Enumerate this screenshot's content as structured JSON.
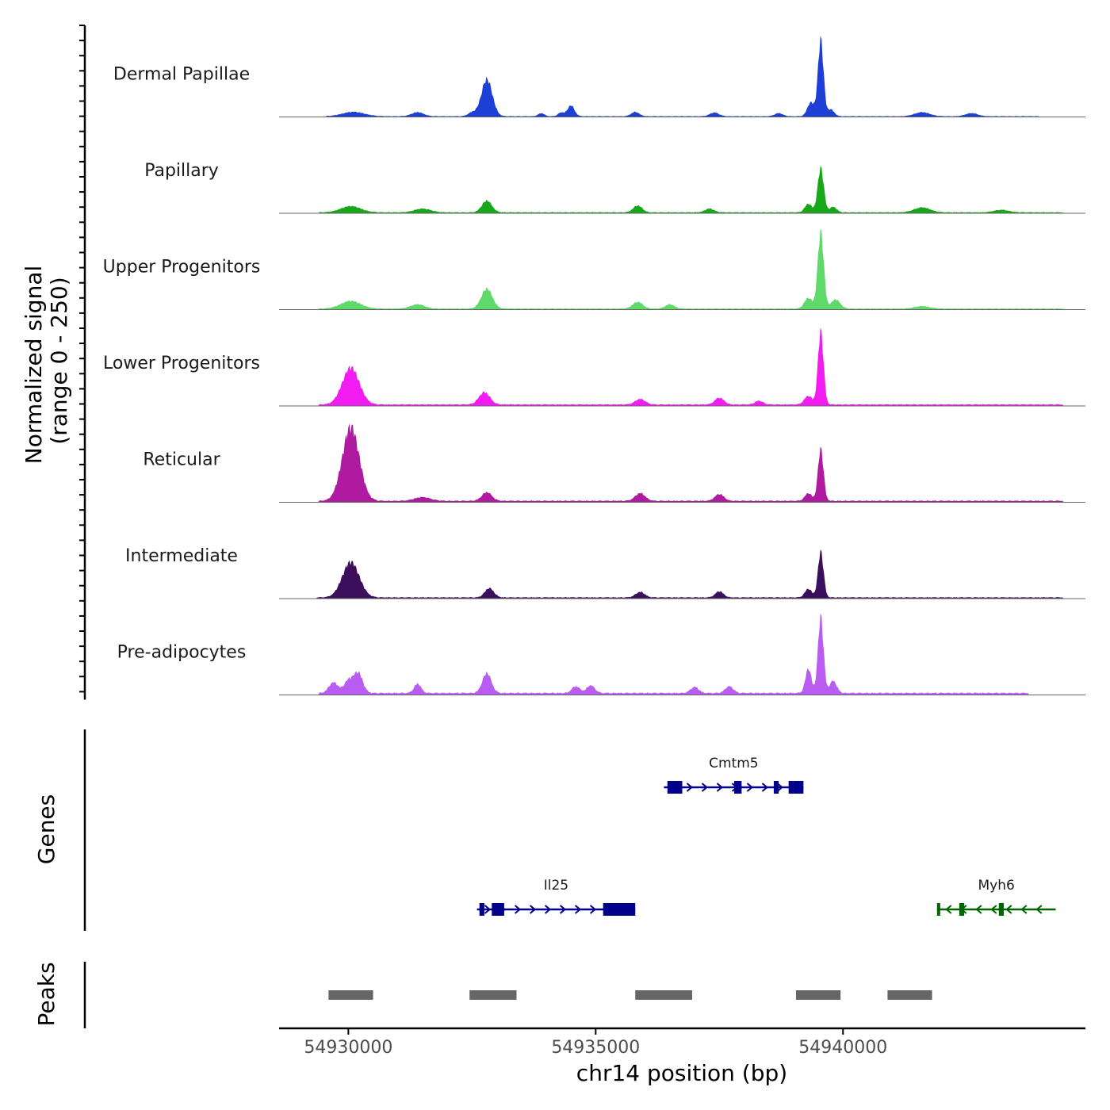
{
  "chart_data": {
    "type": "area",
    "region": {
      "chromosome": "chr14",
      "start": 54928600,
      "end": 54944900
    },
    "ylabel": "Normalized signal\n(range 0 - 250)",
    "ylabel_lines": [
      "Normalized signal",
      "(range 0 - 250)"
    ],
    "ylim": [
      0,
      250
    ],
    "xlabel": "chr14 position (bp)",
    "xticks": [
      {
        "value": 54930000,
        "label": "54930000"
      },
      {
        "value": 54935000,
        "label": "54935000"
      },
      {
        "value": 54940000,
        "label": "54940000"
      }
    ],
    "section_labels": {
      "genes": "Genes",
      "peaks": "Peaks"
    },
    "baseline_color": "#666666",
    "tracks": [
      {
        "name": "Dermal Papillae",
        "color": "#1d3fd6",
        "peaks": [
          {
            "pos": 54939550,
            "height": 250,
            "width": 55
          },
          {
            "pos": 54939350,
            "height": 45,
            "width": 70
          },
          {
            "pos": 54939750,
            "height": 22,
            "width": 70
          },
          {
            "pos": 54932800,
            "height": 120,
            "width": 110
          },
          {
            "pos": 54932500,
            "height": 12,
            "width": 80
          },
          {
            "pos": 54934500,
            "height": 35,
            "width": 70
          },
          {
            "pos": 54934300,
            "height": 12,
            "width": 60
          },
          {
            "pos": 54933900,
            "height": 10,
            "width": 60
          },
          {
            "pos": 54930100,
            "height": 14,
            "width": 220
          },
          {
            "pos": 54931400,
            "height": 13,
            "width": 120
          },
          {
            "pos": 54935800,
            "height": 14,
            "width": 80
          },
          {
            "pos": 54937400,
            "height": 12,
            "width": 90
          },
          {
            "pos": 54938700,
            "height": 10,
            "width": 80
          },
          {
            "pos": 54941600,
            "height": 13,
            "width": 150
          },
          {
            "pos": 54942600,
            "height": 10,
            "width": 120
          }
        ],
        "background": {
          "from": 54929550,
          "to": 54943950,
          "level": 3
        }
      },
      {
        "name": "Papillary",
        "color": "#18a718",
        "peaks": [
          {
            "pos": 54939550,
            "height": 145,
            "width": 60
          },
          {
            "pos": 54939300,
            "height": 28,
            "width": 70
          },
          {
            "pos": 54939800,
            "height": 18,
            "width": 70
          },
          {
            "pos": 54932800,
            "height": 38,
            "width": 100
          },
          {
            "pos": 54930050,
            "height": 20,
            "width": 200
          },
          {
            "pos": 54931500,
            "height": 12,
            "width": 160
          },
          {
            "pos": 54935850,
            "height": 22,
            "width": 90
          },
          {
            "pos": 54937300,
            "height": 12,
            "width": 90
          },
          {
            "pos": 54941600,
            "height": 16,
            "width": 160
          },
          {
            "pos": 54943200,
            "height": 8,
            "width": 150
          }
        ],
        "background": {
          "from": 54929400,
          "to": 54944450,
          "level": 4
        }
      },
      {
        "name": "Upper Progenitors",
        "color": "#5ed96a",
        "peaks": [
          {
            "pos": 54939550,
            "height": 250,
            "width": 60
          },
          {
            "pos": 54939300,
            "height": 35,
            "width": 80
          },
          {
            "pos": 54939850,
            "height": 30,
            "width": 90
          },
          {
            "pos": 54932800,
            "height": 65,
            "width": 110
          },
          {
            "pos": 54930050,
            "height": 25,
            "width": 200
          },
          {
            "pos": 54931400,
            "height": 14,
            "width": 140
          },
          {
            "pos": 54935850,
            "height": 22,
            "width": 100
          },
          {
            "pos": 54936500,
            "height": 14,
            "width": 90
          },
          {
            "pos": 54941600,
            "height": 8,
            "width": 150
          }
        ],
        "background": {
          "from": 54929400,
          "to": 54944450,
          "level": 4
        }
      },
      {
        "name": "Lower Progenitors",
        "color": "#f21bf2",
        "peaks": [
          {
            "pos": 54939550,
            "height": 240,
            "width": 55
          },
          {
            "pos": 54939300,
            "height": 28,
            "width": 80
          },
          {
            "pos": 54930050,
            "height": 120,
            "width": 170
          },
          {
            "pos": 54932750,
            "height": 40,
            "width": 110
          },
          {
            "pos": 54935900,
            "height": 18,
            "width": 100
          },
          {
            "pos": 54937500,
            "height": 22,
            "width": 90
          },
          {
            "pos": 54938300,
            "height": 12,
            "width": 80
          }
        ],
        "background": {
          "from": 54929400,
          "to": 54944450,
          "level": 6
        }
      },
      {
        "name": "Reticular",
        "color": "#b01aa0",
        "peaks": [
          {
            "pos": 54930050,
            "height": 240,
            "width": 170
          },
          {
            "pos": 54939550,
            "height": 170,
            "width": 55
          },
          {
            "pos": 54939300,
            "height": 25,
            "width": 70
          },
          {
            "pos": 54932800,
            "height": 28,
            "width": 100
          },
          {
            "pos": 54935900,
            "height": 25,
            "width": 100
          },
          {
            "pos": 54937500,
            "height": 22,
            "width": 90
          },
          {
            "pos": 54931500,
            "height": 12,
            "width": 160
          }
        ],
        "background": {
          "from": 54929400,
          "to": 54944450,
          "level": 6
        }
      },
      {
        "name": "Intermediate",
        "color": "#3b0f5c",
        "peaks": [
          {
            "pos": 54930050,
            "height": 115,
            "width": 170
          },
          {
            "pos": 54939550,
            "height": 150,
            "width": 55
          },
          {
            "pos": 54939300,
            "height": 28,
            "width": 70
          },
          {
            "pos": 54932850,
            "height": 30,
            "width": 90
          },
          {
            "pos": 54935900,
            "height": 18,
            "width": 90
          },
          {
            "pos": 54937500,
            "height": 20,
            "width": 80
          }
        ],
        "background": {
          "from": 54929350,
          "to": 54944450,
          "level": 5
        }
      },
      {
        "name": "Pre-adipocytes",
        "color": "#b85cf2",
        "peaks": [
          {
            "pos": 54939550,
            "height": 250,
            "width": 55
          },
          {
            "pos": 54939300,
            "height": 80,
            "width": 60
          },
          {
            "pos": 54939800,
            "height": 40,
            "width": 70
          },
          {
            "pos": 54930200,
            "height": 65,
            "width": 90
          },
          {
            "pos": 54929700,
            "height": 35,
            "width": 90
          },
          {
            "pos": 54930000,
            "height": 40,
            "width": 90
          },
          {
            "pos": 54932800,
            "height": 65,
            "width": 90
          },
          {
            "pos": 54931400,
            "height": 30,
            "width": 70
          },
          {
            "pos": 54934600,
            "height": 22,
            "width": 80
          },
          {
            "pos": 54934900,
            "height": 25,
            "width": 80
          },
          {
            "pos": 54937000,
            "height": 20,
            "width": 80
          },
          {
            "pos": 54937700,
            "height": 22,
            "width": 80
          }
        ],
        "background": {
          "from": 54929400,
          "to": 54943750,
          "level": 8
        }
      }
    ],
    "genes": [
      {
        "name": "Cmtm5",
        "strand": "+",
        "start": 54936380,
        "end": 54939200,
        "row": 0,
        "color": "#00008b",
        "exons": [
          [
            54936450,
            54936750
          ],
          [
            54937800,
            54937950
          ],
          [
            54938600,
            54938700
          ],
          [
            54938900,
            54939000
          ],
          [
            54939000,
            54939200
          ]
        ]
      },
      {
        "name": "Il25",
        "strand": "+",
        "start": 54932600,
        "end": 54935800,
        "row": 1,
        "color": "#00008b",
        "exons": [
          [
            54932650,
            54932750
          ],
          [
            54932900,
            54933150
          ],
          [
            54935150,
            54935800
          ]
        ]
      },
      {
        "name": "Myh6",
        "strand": "-",
        "start": 54941900,
        "end": 54944300,
        "row": 1,
        "color": "#006400",
        "exons": [
          [
            54941900,
            54941950
          ],
          [
            54942350,
            54942450
          ],
          [
            54943150,
            54943250
          ]
        ]
      }
    ],
    "peak_regions": [
      [
        54929600,
        54930500
      ],
      [
        54932450,
        54933400
      ],
      [
        54935800,
        54936950
      ],
      [
        54939050,
        54939950
      ],
      [
        54940900,
        54941800
      ]
    ]
  }
}
